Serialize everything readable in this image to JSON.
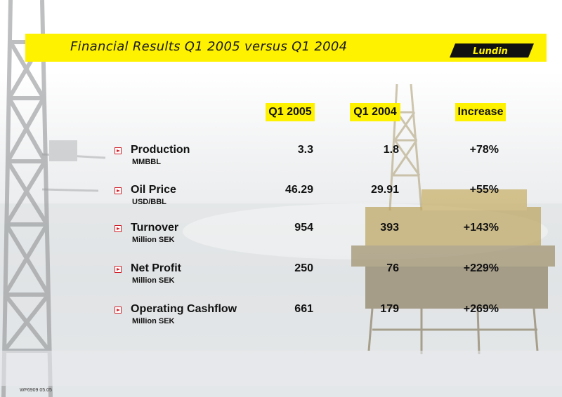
{
  "slide": {
    "title": "Financial Results Q1 2005 versus Q1 2004",
    "logo_text": "Lundin",
    "footer_code": "WF6909 05.05"
  },
  "columns": [
    "Q1 2005",
    "Q1 2004",
    "Increase"
  ],
  "rows": [
    {
      "label": "Production",
      "unit": "MMBBL",
      "q1_2005": "3.3",
      "q1_2004": "1.8",
      "increase": "+78%"
    },
    {
      "label": "Oil Price",
      "unit": "USD/BBL",
      "q1_2005": "46.29",
      "q1_2004": "29.91",
      "increase": "+55%"
    },
    {
      "label": "Turnover",
      "unit": "Million SEK",
      "q1_2005": "954",
      "q1_2004": "393",
      "increase": "+143%"
    },
    {
      "label": "Net Profit",
      "unit": "Million SEK",
      "q1_2005": "250",
      "q1_2004": "76",
      "increase": "+229%"
    },
    {
      "label": "Operating Cashflow",
      "unit": "Million SEK",
      "q1_2005": "661",
      "q1_2004": "179",
      "increase": "+269%"
    }
  ],
  "colors": {
    "accent_yellow": "#fff200",
    "bullet_red": "#d0202a",
    "text": "#111111"
  }
}
